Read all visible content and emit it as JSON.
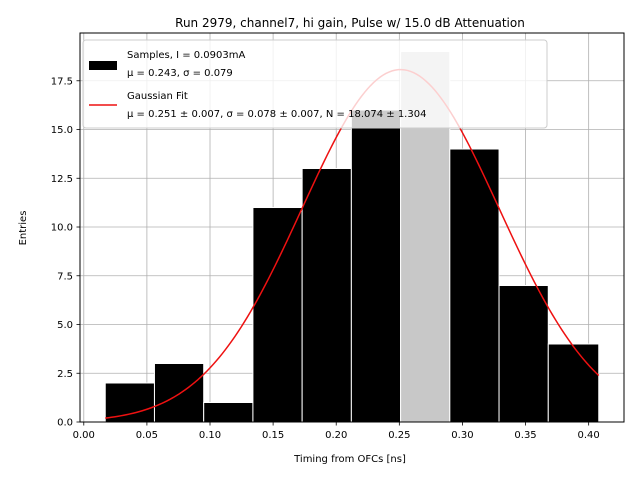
{
  "chart_data": {
    "type": "bar",
    "title": "Run 2979, channel7, hi gain, Pulse w/ 15.0 dB Attenuation",
    "xlabel": "Timing from OFCs [ns]",
    "ylabel": "Entries",
    "xlim": [
      -0.003,
      0.428
    ],
    "ylim": [
      0,
      19.95
    ],
    "grid": true,
    "legend_position": "top-left",
    "x_ticks": [
      "0.00",
      "0.05",
      "0.10",
      "0.15",
      "0.20",
      "0.25",
      "0.30",
      "0.35",
      "0.40"
    ],
    "y_ticks": [
      "0.0",
      "2.5",
      "5.0",
      "7.5",
      "10.0",
      "12.5",
      "15.0",
      "17.5"
    ],
    "histogram": {
      "name": "Samples, I = 0.0903mA",
      "stats": "μ = 0.243, σ = 0.079",
      "color": "#000000",
      "bin_edges": [
        0.017,
        0.056,
        0.095,
        0.134,
        0.173,
        0.212,
        0.251,
        0.29,
        0.329,
        0.368,
        0.408
      ],
      "counts": [
        2,
        3,
        1,
        11,
        13,
        16,
        19,
        14,
        7,
        4
      ],
      "highlight_bin_index": 6,
      "highlight_color": "#c8c8c8"
    },
    "fit": {
      "name": "Gaussian Fit",
      "params": "μ = 0.251 ± 0.007, σ = 0.078 ± 0.007, N = 18.074 ± 1.304",
      "color": "#ee1111",
      "mu": 0.251,
      "sigma": 0.078,
      "amplitude": 18.074,
      "x_range": [
        0.017,
        0.408
      ]
    }
  }
}
